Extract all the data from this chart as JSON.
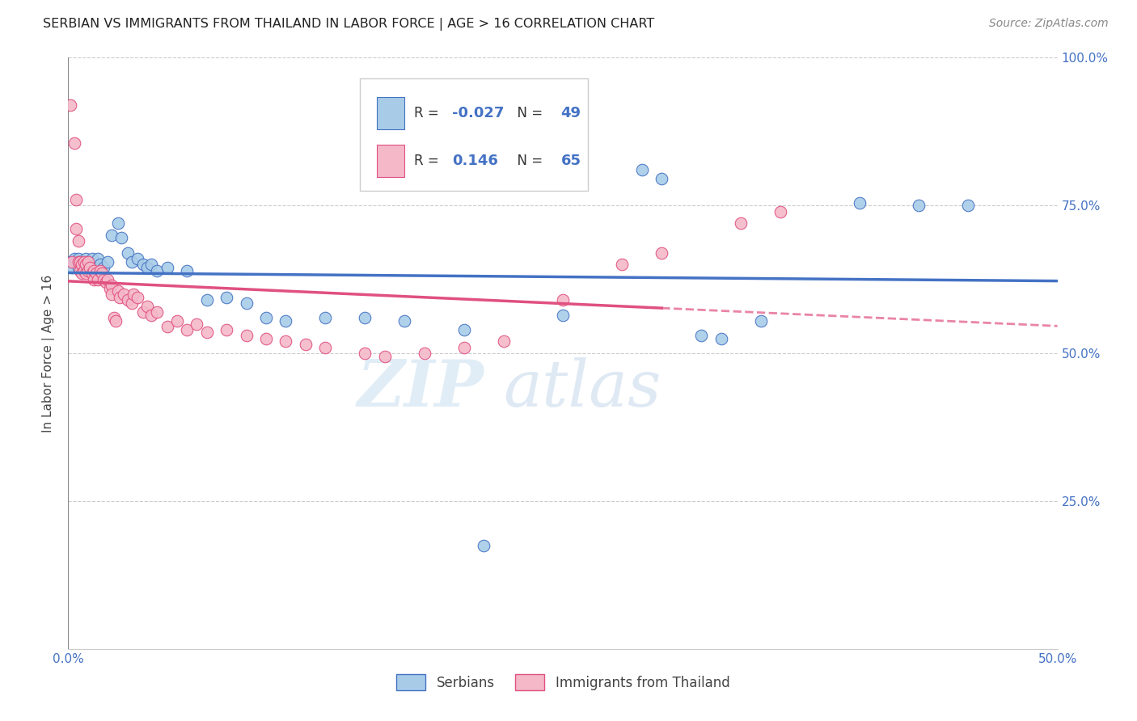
{
  "title": "SERBIAN VS IMMIGRANTS FROM THAILAND IN LABOR FORCE | AGE > 16 CORRELATION CHART",
  "source": "Source: ZipAtlas.com",
  "ylabel": "In Labor Force | Age > 16",
  "yticks": [
    0.0,
    0.25,
    0.5,
    0.75,
    1.0
  ],
  "ytick_labels": [
    "",
    "25.0%",
    "50.0%",
    "75.0%",
    "100.0%"
  ],
  "legend_label1": "Serbians",
  "legend_label2": "Immigrants from Thailand",
  "R1": "-0.027",
  "N1": "49",
  "R2": "0.146",
  "N2": "65",
  "color_blue": "#a8cce8",
  "color_pink": "#f4b8c8",
  "color_blue_line": "#4472c4",
  "color_pink_line": "#e05080",
  "watermark_zip": "ZIP",
  "watermark_atlas": "atlas",
  "blue_points": [
    [
      0.001,
      0.655
    ],
    [
      0.002,
      0.645
    ],
    [
      0.003,
      0.66
    ],
    [
      0.004,
      0.655
    ],
    [
      0.005,
      0.66
    ],
    [
      0.005,
      0.645
    ],
    [
      0.006,
      0.655
    ],
    [
      0.007,
      0.65
    ],
    [
      0.008,
      0.655
    ],
    [
      0.009,
      0.66
    ],
    [
      0.01,
      0.645
    ],
    [
      0.011,
      0.655
    ],
    [
      0.012,
      0.66
    ],
    [
      0.013,
      0.645
    ],
    [
      0.015,
      0.66
    ],
    [
      0.016,
      0.65
    ],
    [
      0.018,
      0.645
    ],
    [
      0.02,
      0.655
    ],
    [
      0.022,
      0.7
    ],
    [
      0.025,
      0.72
    ],
    [
      0.027,
      0.695
    ],
    [
      0.03,
      0.67
    ],
    [
      0.032,
      0.655
    ],
    [
      0.035,
      0.66
    ],
    [
      0.038,
      0.65
    ],
    [
      0.04,
      0.645
    ],
    [
      0.042,
      0.65
    ],
    [
      0.045,
      0.64
    ],
    [
      0.05,
      0.645
    ],
    [
      0.06,
      0.64
    ],
    [
      0.07,
      0.59
    ],
    [
      0.08,
      0.595
    ],
    [
      0.09,
      0.585
    ],
    [
      0.1,
      0.56
    ],
    [
      0.11,
      0.555
    ],
    [
      0.13,
      0.56
    ],
    [
      0.15,
      0.56
    ],
    [
      0.17,
      0.555
    ],
    [
      0.2,
      0.54
    ],
    [
      0.21,
      0.175
    ],
    [
      0.25,
      0.565
    ],
    [
      0.29,
      0.81
    ],
    [
      0.3,
      0.795
    ],
    [
      0.32,
      0.53
    ],
    [
      0.33,
      0.525
    ],
    [
      0.35,
      0.555
    ],
    [
      0.4,
      0.755
    ],
    [
      0.43,
      0.75
    ],
    [
      0.455,
      0.75
    ]
  ],
  "pink_points": [
    [
      0.001,
      0.92
    ],
    [
      0.002,
      0.655
    ],
    [
      0.003,
      0.855
    ],
    [
      0.004,
      0.76
    ],
    [
      0.004,
      0.71
    ],
    [
      0.005,
      0.69
    ],
    [
      0.005,
      0.655
    ],
    [
      0.006,
      0.655
    ],
    [
      0.006,
      0.64
    ],
    [
      0.007,
      0.65
    ],
    [
      0.007,
      0.635
    ],
    [
      0.008,
      0.64
    ],
    [
      0.008,
      0.655
    ],
    [
      0.009,
      0.635
    ],
    [
      0.009,
      0.65
    ],
    [
      0.01,
      0.64
    ],
    [
      0.01,
      0.655
    ],
    [
      0.011,
      0.645
    ],
    [
      0.012,
      0.635
    ],
    [
      0.013,
      0.64
    ],
    [
      0.013,
      0.625
    ],
    [
      0.014,
      0.635
    ],
    [
      0.015,
      0.625
    ],
    [
      0.016,
      0.64
    ],
    [
      0.017,
      0.635
    ],
    [
      0.018,
      0.625
    ],
    [
      0.019,
      0.62
    ],
    [
      0.02,
      0.625
    ],
    [
      0.021,
      0.61
    ],
    [
      0.022,
      0.615
    ],
    [
      0.022,
      0.6
    ],
    [
      0.023,
      0.56
    ],
    [
      0.024,
      0.555
    ],
    [
      0.025,
      0.605
    ],
    [
      0.026,
      0.595
    ],
    [
      0.028,
      0.6
    ],
    [
      0.03,
      0.59
    ],
    [
      0.032,
      0.585
    ],
    [
      0.033,
      0.6
    ],
    [
      0.035,
      0.595
    ],
    [
      0.038,
      0.57
    ],
    [
      0.04,
      0.58
    ],
    [
      0.042,
      0.565
    ],
    [
      0.045,
      0.57
    ],
    [
      0.05,
      0.545
    ],
    [
      0.055,
      0.555
    ],
    [
      0.06,
      0.54
    ],
    [
      0.065,
      0.55
    ],
    [
      0.07,
      0.535
    ],
    [
      0.08,
      0.54
    ],
    [
      0.09,
      0.53
    ],
    [
      0.1,
      0.525
    ],
    [
      0.11,
      0.52
    ],
    [
      0.12,
      0.515
    ],
    [
      0.13,
      0.51
    ],
    [
      0.15,
      0.5
    ],
    [
      0.16,
      0.495
    ],
    [
      0.18,
      0.5
    ],
    [
      0.2,
      0.51
    ],
    [
      0.22,
      0.52
    ],
    [
      0.25,
      0.59
    ],
    [
      0.28,
      0.65
    ],
    [
      0.3,
      0.67
    ],
    [
      0.34,
      0.72
    ],
    [
      0.36,
      0.74
    ]
  ]
}
